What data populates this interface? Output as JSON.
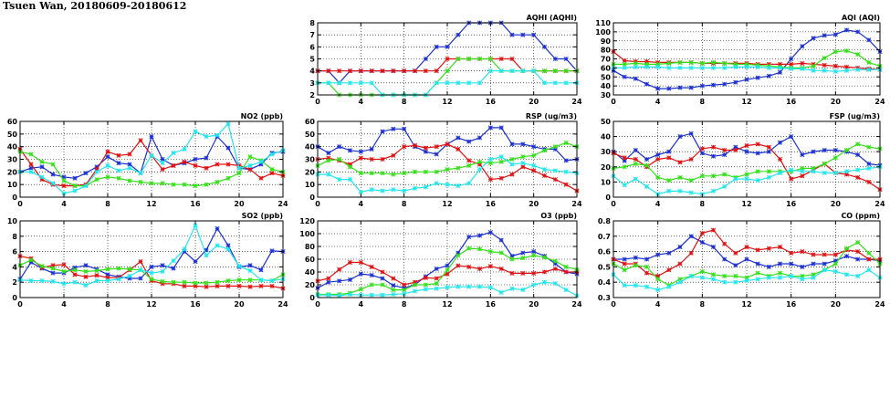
{
  "page": {
    "title": "Tsuen Wan, 20180609-20180612"
  },
  "colors": {
    "blue": "#1a2fd0",
    "red": "#e01010",
    "green": "#33e018",
    "cyan": "#22e6ee"
  },
  "chart_data": [
    {
      "id": "aqhi",
      "type": "line",
      "title": "AQHI (AQHI)",
      "xlim": [
        0,
        24
      ],
      "xticks": [
        0,
        4,
        8,
        12,
        16,
        20,
        24
      ],
      "ylim": [
        2,
        8
      ],
      "yticks": [
        2,
        3,
        4,
        5,
        6,
        7,
        8
      ],
      "series": [
        {
          "name": "blue",
          "color": "blue",
          "values": [
            4,
            4,
            3,
            4,
            4,
            4,
            4,
            4,
            4,
            4,
            5,
            6,
            6,
            7,
            8,
            8,
            8,
            8,
            7,
            7,
            7,
            6,
            5,
            5,
            4
          ]
        },
        {
          "name": "red",
          "color": "red",
          "values": [
            4,
            4,
            4,
            4,
            4,
            4,
            4,
            4,
            4,
            4,
            4,
            4,
            5,
            5,
            5,
            5,
            5,
            5,
            5,
            4,
            4,
            4,
            4,
            4,
            4
          ]
        },
        {
          "name": "green",
          "color": "green",
          "values": [
            3,
            3,
            2,
            2,
            2,
            2,
            2,
            2,
            2,
            2,
            2,
            3,
            4,
            5,
            5,
            5,
            5,
            4,
            4,
            4,
            4,
            4,
            4,
            4,
            4
          ]
        },
        {
          "name": "cyan",
          "color": "cyan",
          "values": [
            3,
            3,
            3,
            3,
            3,
            3,
            2,
            2,
            2,
            2,
            2,
            3,
            3,
            3,
            3,
            3,
            4,
            4,
            4,
            4,
            4,
            3,
            3,
            3,
            3
          ]
        }
      ]
    },
    {
      "id": "aqi",
      "type": "line",
      "title": "AQI (AQI)",
      "xlim": [
        0,
        24
      ],
      "xticks": [
        0,
        4,
        8,
        12,
        16,
        20,
        24
      ],
      "ylim": [
        30,
        110
      ],
      "yticks": [
        30,
        40,
        50,
        60,
        70,
        80,
        90,
        100,
        110
      ],
      "series": [
        {
          "name": "blue",
          "color": "blue",
          "values": [
            57,
            50,
            48,
            42,
            37,
            37,
            38,
            38,
            40,
            41,
            42,
            44,
            47,
            49,
            51,
            55,
            70,
            84,
            93,
            96,
            97,
            102,
            100,
            91,
            78
          ]
        },
        {
          "name": "red",
          "color": "red",
          "values": [
            78,
            68,
            67,
            67,
            66,
            66,
            66,
            66,
            65,
            65,
            65,
            65,
            65,
            64,
            64,
            64,
            64,
            65,
            64,
            63,
            62,
            61,
            60,
            59,
            58
          ]
        },
        {
          "name": "green",
          "color": "green",
          "values": [
            64,
            64,
            65,
            64,
            64,
            65,
            66,
            66,
            65,
            66,
            65,
            64,
            64,
            63,
            62,
            61,
            60,
            60,
            62,
            71,
            78,
            79,
            75,
            66,
            62
          ]
        },
        {
          "name": "cyan",
          "color": "cyan",
          "values": [
            60,
            60,
            61,
            61,
            61,
            60,
            60,
            60,
            60,
            60,
            60,
            61,
            61,
            61,
            60,
            60,
            59,
            59,
            57,
            57,
            56,
            57,
            58,
            58,
            58
          ]
        }
      ]
    },
    {
      "id": "no2",
      "type": "line",
      "title": "NO2 (ppb)",
      "xlim": [
        0,
        24
      ],
      "xticks": [
        0,
        4,
        8,
        12,
        16,
        20,
        24
      ],
      "ylim": [
        0,
        60
      ],
      "yticks": [
        0,
        10,
        20,
        30,
        40,
        50,
        60
      ],
      "series": [
        {
          "name": "blue",
          "color": "blue",
          "values": [
            20,
            23,
            24,
            18,
            16,
            15,
            19,
            24,
            32,
            27,
            26,
            19,
            48,
            30,
            25,
            27,
            30,
            31,
            48,
            39,
            23,
            22,
            26,
            35,
            36
          ]
        },
        {
          "name": "red",
          "color": "red",
          "values": [
            38,
            26,
            14,
            10,
            9,
            9,
            10,
            22,
            36,
            33,
            34,
            45,
            33,
            22,
            25,
            28,
            25,
            23,
            26,
            26,
            25,
            22,
            15,
            19,
            17
          ]
        },
        {
          "name": "green",
          "color": "green",
          "values": [
            36,
            34,
            28,
            26,
            13,
            9,
            9,
            14,
            16,
            15,
            13,
            12,
            11,
            11,
            10,
            10,
            9,
            10,
            12,
            15,
            19,
            32,
            29,
            22,
            20
          ]
        },
        {
          "name": "cyan",
          "color": "cyan",
          "values": [
            20,
            20,
            16,
            11,
            3,
            5,
            9,
            20,
            25,
            21,
            23,
            19,
            33,
            27,
            35,
            38,
            52,
            48,
            49,
            58,
            23,
            25,
            28,
            34,
            37
          ]
        }
      ]
    },
    {
      "id": "rsp",
      "type": "line",
      "title": "RSP (ug/m3)",
      "xlim": [
        0,
        24
      ],
      "xticks": [
        0,
        4,
        8,
        12,
        16,
        20,
        24
      ],
      "ylim": [
        0,
        60
      ],
      "yticks": [
        0,
        10,
        20,
        30,
        40,
        50,
        60
      ],
      "series": [
        {
          "name": "blue",
          "color": "blue",
          "values": [
            40,
            35,
            40,
            37,
            36,
            38,
            52,
            54,
            54,
            40,
            36,
            34,
            42,
            47,
            44,
            47,
            55,
            55,
            42,
            42,
            40,
            38,
            38,
            29,
            30
          ]
        },
        {
          "name": "red",
          "color": "red",
          "values": [
            30,
            31,
            29,
            26,
            31,
            30,
            30,
            33,
            40,
            41,
            39,
            40,
            42,
            38,
            29,
            26,
            14,
            15,
            18,
            24,
            21,
            17,
            14,
            10,
            5
          ]
        },
        {
          "name": "green",
          "color": "green",
          "values": [
            25,
            29,
            30,
            24,
            19,
            19,
            19,
            18,
            19,
            20,
            20,
            20,
            22,
            23,
            25,
            28,
            27,
            28,
            30,
            32,
            33,
            37,
            40,
            43,
            40
          ]
        },
        {
          "name": "cyan",
          "color": "cyan",
          "values": [
            18,
            18,
            14,
            14,
            4,
            6,
            5,
            6,
            5,
            7,
            8,
            11,
            10,
            9,
            11,
            22,
            30,
            32,
            26,
            27,
            25,
            22,
            21,
            20,
            19
          ]
        }
      ]
    },
    {
      "id": "fsp",
      "type": "line",
      "title": "FSP (ug/m3)",
      "xlim": [
        0,
        24
      ],
      "xticks": [
        0,
        4,
        8,
        12,
        16,
        20,
        24
      ],
      "ylim": [
        0,
        50
      ],
      "yticks": [
        0,
        10,
        20,
        30,
        40,
        50
      ],
      "series": [
        {
          "name": "blue",
          "color": "blue",
          "values": [
            30,
            24,
            31,
            25,
            28,
            30,
            40,
            42,
            29,
            27,
            28,
            33,
            30,
            29,
            30,
            36,
            40,
            28,
            30,
            31,
            31,
            30,
            28,
            22,
            21
          ]
        },
        {
          "name": "red",
          "color": "red",
          "values": [
            29,
            26,
            25,
            20,
            25,
            26,
            23,
            25,
            32,
            33,
            31,
            31,
            34,
            35,
            33,
            25,
            12,
            14,
            18,
            22,
            16,
            15,
            13,
            10,
            5
          ]
        },
        {
          "name": "green",
          "color": "green",
          "values": [
            19,
            20,
            22,
            21,
            13,
            11,
            13,
            11,
            14,
            14,
            15,
            13,
            15,
            17,
            17,
            17,
            17,
            19,
            19,
            22,
            26,
            31,
            35,
            33,
            32
          ]
        },
        {
          "name": "cyan",
          "color": "cyan",
          "values": [
            14,
            8,
            12,
            7,
            2,
            4,
            4,
            3,
            2,
            4,
            7,
            12,
            12,
            11,
            13,
            16,
            18,
            17,
            17,
            16,
            16,
            17,
            18,
            19,
            20
          ]
        }
      ]
    },
    {
      "id": "so2",
      "type": "line",
      "title": "SO2 (ppb)",
      "xlim": [
        0,
        24
      ],
      "xticks": [
        0,
        4,
        8,
        12,
        16,
        20,
        24
      ],
      "ylim": [
        0,
        10
      ],
      "yticks": [
        0,
        2,
        4,
        6,
        8,
        10
      ],
      "series": [
        {
          "name": "blue",
          "color": "blue",
          "values": [
            2.4,
            4.6,
            3.8,
            3.2,
            3.2,
            3.9,
            4.2,
            3.7,
            3.0,
            2.7,
            2.5,
            2.5,
            4.0,
            4.2,
            3.8,
            6.0,
            4.7,
            6.2,
            9.0,
            6.8,
            4.0,
            4.2,
            3.6,
            6.1,
            6.0
          ]
        },
        {
          "name": "red",
          "color": "red",
          "values": [
            5.4,
            5.1,
            3.9,
            4.2,
            4.3,
            3.0,
            2.7,
            2.9,
            2.6,
            2.6,
            3.6,
            4.7,
            2.2,
            1.8,
            1.8,
            1.5,
            1.5,
            1.4,
            1.5,
            1.5,
            1.5,
            1.4,
            1.5,
            1.5,
            1.2
          ]
        },
        {
          "name": "green",
          "color": "green",
          "values": [
            4.2,
            4.9,
            4.1,
            3.8,
            3.4,
            3.6,
            3.4,
            3.5,
            3.7,
            3.8,
            3.7,
            3.6,
            2.4,
            2.1,
            2.0,
            2.0,
            1.9,
            1.9,
            2.0,
            2.2,
            2.3,
            2.3,
            2.3,
            2.2,
            3.0
          ]
        },
        {
          "name": "cyan",
          "color": "cyan",
          "values": [
            2.3,
            2.2,
            2.2,
            2.1,
            1.8,
            2.0,
            1.6,
            2.2,
            2.2,
            2.4,
            2.8,
            3.6,
            3.2,
            3.4,
            4.8,
            6.3,
            9.4,
            5.5,
            6.8,
            6.3,
            4.1,
            3.5,
            2.3,
            2.2,
            2.4
          ]
        }
      ]
    },
    {
      "id": "o3",
      "type": "line",
      "title": "O3 (ppb)",
      "xlim": [
        0,
        24
      ],
      "xticks": [
        0,
        4,
        8,
        12,
        16,
        20,
        24
      ],
      "ylim": [
        0,
        120
      ],
      "yticks": [
        0,
        20,
        40,
        60,
        80,
        100,
        120
      ],
      "series": [
        {
          "name": "blue",
          "color": "blue",
          "values": [
            15,
            24,
            26,
            28,
            37,
            35,
            30,
            19,
            15,
            20,
            33,
            45,
            50,
            70,
            95,
            97,
            102,
            90,
            65,
            70,
            72,
            65,
            53,
            40,
            37
          ]
        },
        {
          "name": "red",
          "color": "red",
          "values": [
            26,
            30,
            44,
            55,
            55,
            48,
            40,
            30,
            20,
            24,
            31,
            30,
            37,
            50,
            48,
            45,
            49,
            45,
            38,
            38,
            38,
            40,
            45,
            40,
            40
          ]
        },
        {
          "name": "green",
          "color": "green",
          "values": [
            5,
            5,
            5,
            7,
            13,
            20,
            20,
            12,
            12,
            20,
            20,
            22,
            43,
            66,
            77,
            76,
            72,
            70,
            60,
            62,
            66,
            63,
            57,
            48,
            44
          ]
        },
        {
          "name": "cyan",
          "color": "cyan",
          "values": [
            4,
            4,
            3,
            5,
            4,
            4,
            4,
            5,
            6,
            10,
            13,
            14,
            16,
            17,
            17,
            17,
            16,
            8,
            14,
            12,
            20,
            24,
            22,
            12,
            3
          ]
        }
      ]
    },
    {
      "id": "co",
      "type": "line",
      "title": "CO (ppm)",
      "xlim": [
        0,
        24
      ],
      "xticks": [
        0,
        4,
        8,
        12,
        16,
        20,
        24
      ],
      "ylim": [
        0.3,
        0.8
      ],
      "yticks": [
        0.3,
        0.4,
        0.5,
        0.6,
        0.7,
        0.8
      ],
      "series": [
        {
          "name": "blue",
          "color": "blue",
          "values": [
            0.55,
            0.55,
            0.56,
            0.55,
            0.58,
            0.59,
            0.63,
            0.7,
            0.66,
            0.63,
            0.55,
            0.51,
            0.55,
            0.52,
            0.5,
            0.52,
            0.52,
            0.5,
            0.52,
            0.52,
            0.54,
            0.57,
            0.55,
            0.55,
            0.54
          ]
        },
        {
          "name": "red",
          "color": "red",
          "values": [
            0.55,
            0.52,
            0.52,
            0.46,
            0.44,
            0.48,
            0.52,
            0.59,
            0.72,
            0.74,
            0.65,
            0.59,
            0.63,
            0.61,
            0.62,
            0.63,
            0.59,
            0.6,
            0.58,
            0.58,
            0.58,
            0.61,
            0.6,
            0.55,
            0.55
          ]
        },
        {
          "name": "green",
          "color": "green",
          "values": [
            0.52,
            0.48,
            0.51,
            0.5,
            0.42,
            0.38,
            0.42,
            0.44,
            0.47,
            0.45,
            0.44,
            0.44,
            0.43,
            0.46,
            0.44,
            0.46,
            0.44,
            0.44,
            0.45,
            0.48,
            0.52,
            0.62,
            0.66,
            0.59,
            0.52
          ]
        },
        {
          "name": "cyan",
          "color": "cyan",
          "values": [
            0.45,
            0.38,
            0.38,
            0.37,
            0.35,
            0.37,
            0.4,
            0.44,
            0.43,
            0.42,
            0.4,
            0.4,
            0.41,
            0.42,
            0.43,
            0.43,
            0.44,
            0.42,
            0.43,
            0.48,
            0.47,
            0.45,
            0.44,
            0.48,
            0.43
          ]
        }
      ]
    }
  ]
}
